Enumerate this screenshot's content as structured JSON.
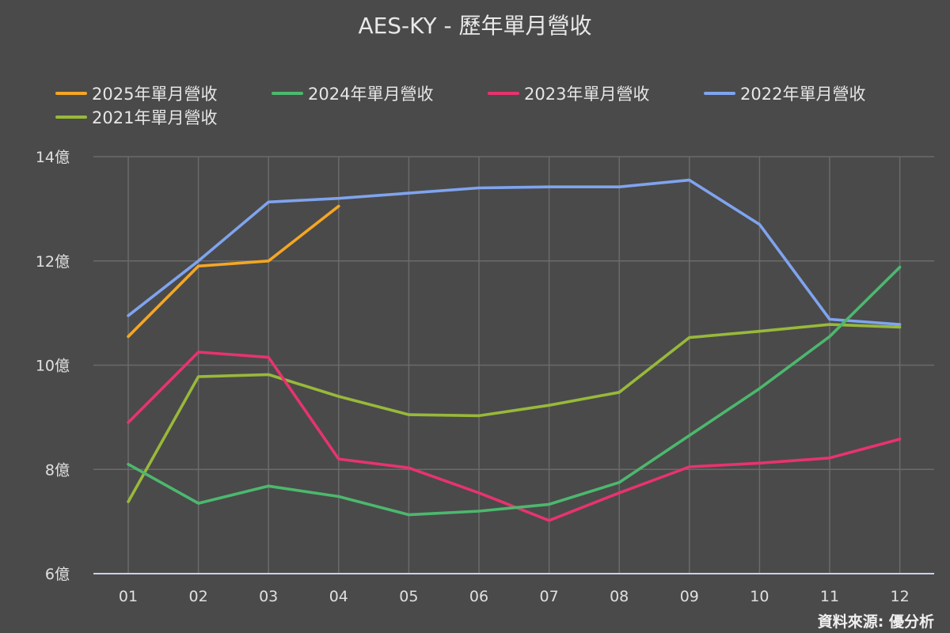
{
  "chart_data": {
    "type": "line",
    "title": "AES-KY - 歷年單月營收",
    "source": "資料來源: 優分析",
    "categories": [
      "01",
      "02",
      "03",
      "04",
      "05",
      "06",
      "07",
      "08",
      "09",
      "10",
      "11",
      "12"
    ],
    "y_ticks": [
      "6億",
      "8億",
      "10億",
      "12億",
      "14億"
    ],
    "ylim": [
      6,
      14
    ],
    "legend_position": "top",
    "series": [
      {
        "name": "2025年單月營收",
        "color": "#f5a623",
        "values": [
          10.55,
          11.9,
          12.0,
          13.05,
          null,
          null,
          null,
          null,
          null,
          null,
          null,
          null
        ]
      },
      {
        "name": "2024年單月營收",
        "color": "#4cb86e",
        "values": [
          8.1,
          7.35,
          7.68,
          7.48,
          7.13,
          7.2,
          7.33,
          7.75,
          8.65,
          9.55,
          10.55,
          11.88
        ]
      },
      {
        "name": "2023年單月營收",
        "color": "#e8336e",
        "values": [
          8.9,
          10.25,
          10.15,
          8.2,
          8.03,
          7.55,
          7.02,
          7.55,
          8.05,
          8.12,
          8.22,
          8.58
        ]
      },
      {
        "name": "2022年單月營收",
        "color": "#7fa4ef",
        "values": [
          10.95,
          12.0,
          13.13,
          13.2,
          13.3,
          13.4,
          13.42,
          13.42,
          13.55,
          12.7,
          10.88,
          10.78
        ]
      },
      {
        "name": "2021年單月營收",
        "color": "#98b93a",
        "values": [
          7.38,
          9.78,
          9.82,
          9.4,
          9.05,
          9.03,
          9.23,
          9.48,
          10.53,
          10.65,
          10.78,
          10.73
        ]
      }
    ]
  }
}
